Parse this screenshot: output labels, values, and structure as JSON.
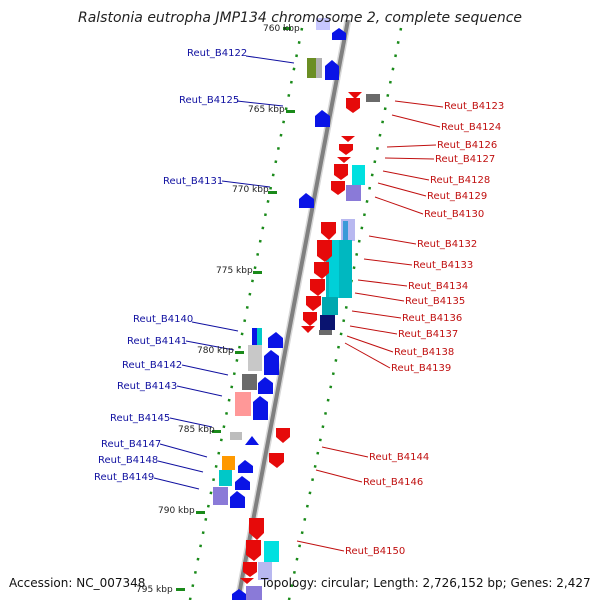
{
  "title": "Ralstonia eutropha JMP134 chromosome 2, complete sequence",
  "footer": {
    "accession": "Accession: NC_007348",
    "summary": "Topology: circular; Length: 2,726,152 bp; Genes: 2,427"
  },
  "ticks": [
    {
      "label": "760 kbp"
    },
    {
      "label": "765 kbp"
    },
    {
      "label": "770 kbp"
    },
    {
      "label": "775 kbp"
    },
    {
      "label": "780 kbp"
    },
    {
      "label": "785 kbp"
    },
    {
      "label": "790 kbp"
    },
    {
      "label": "795 kbp"
    }
  ],
  "genes_left": [
    {
      "label": "Reut_B4122"
    },
    {
      "label": "Reut_B4125"
    },
    {
      "label": "Reut_B4131"
    },
    {
      "label": "Reut_B4140"
    },
    {
      "label": "Reut_B4141"
    },
    {
      "label": "Reut_B4142"
    },
    {
      "label": "Reut_B4143"
    },
    {
      "label": "Reut_B4145"
    },
    {
      "label": "Reut_B4147"
    },
    {
      "label": "Reut_B4148"
    },
    {
      "label": "Reut_B4149"
    }
  ],
  "genes_right": [
    {
      "label": "Reut_B4123"
    },
    {
      "label": "Reut_B4124"
    },
    {
      "label": "Reut_B4126"
    },
    {
      "label": "Reut_B4127"
    },
    {
      "label": "Reut_B4128"
    },
    {
      "label": "Reut_B4129"
    },
    {
      "label": "Reut_B4130"
    },
    {
      "label": "Reut_B4132"
    },
    {
      "label": "Reut_B4133"
    },
    {
      "label": "Reut_B4134"
    },
    {
      "label": "Reut_B4135"
    },
    {
      "label": "Reut_B4136"
    },
    {
      "label": "Reut_B4137"
    },
    {
      "label": "Reut_B4138"
    },
    {
      "label": "Reut_B4139"
    },
    {
      "label": "Reut_B4144"
    },
    {
      "label": "Reut_B4146"
    },
    {
      "label": "Reut_B4150"
    }
  ],
  "colors": {
    "forward_strand": "#0a14e6",
    "reverse_strand": "#e60a0a",
    "backbone": "#808080",
    "grid": "#1a8a1a",
    "left_labels": "#1010a0",
    "right_labels": "#c01010"
  }
}
